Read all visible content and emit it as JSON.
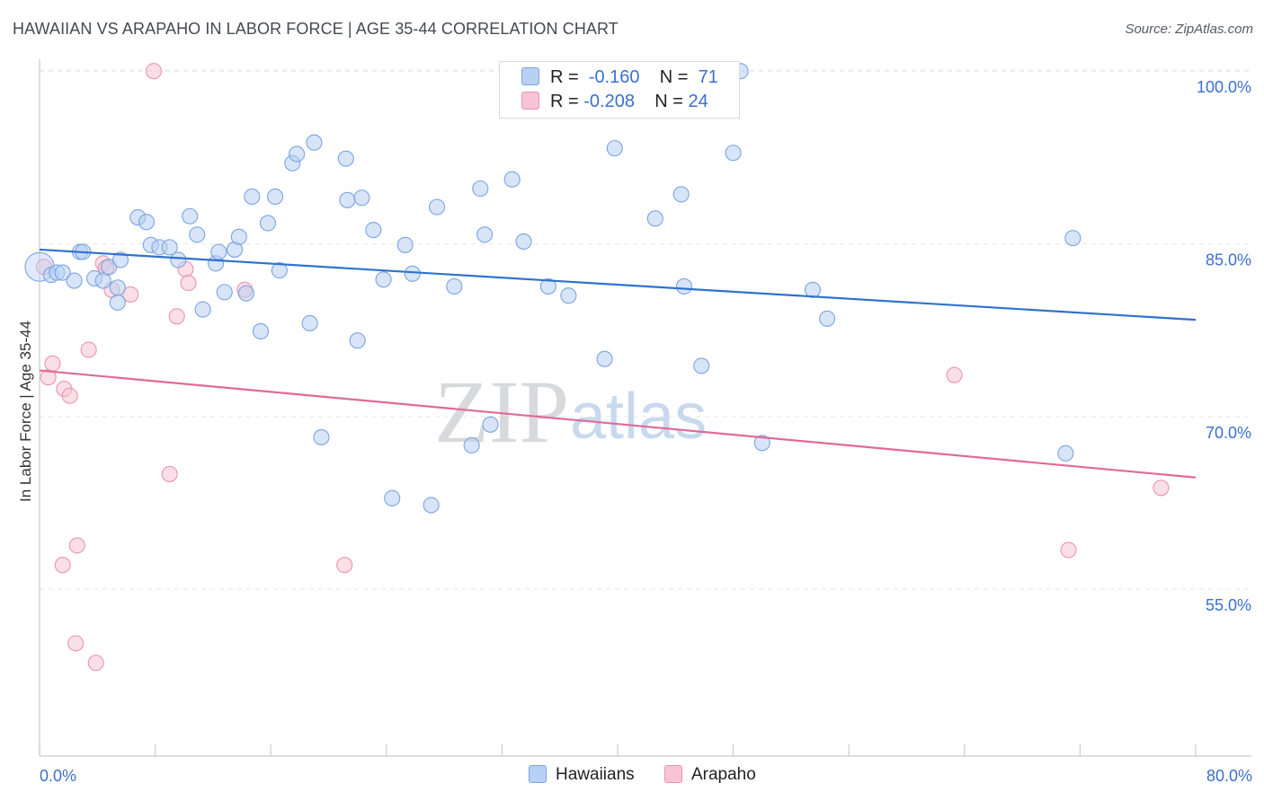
{
  "header": {
    "title": "HAWAIIAN VS ARAPAHO IN LABOR FORCE | AGE 35-44 CORRELATION CHART",
    "source": "Source: ZipAtlas.com"
  },
  "watermark": {
    "zip": "ZIP",
    "atlas": "atlas"
  },
  "legend": {
    "r_label": "R =",
    "n_label": "N =",
    "hawaiians": {
      "r": "-0.160",
      "n": "71"
    },
    "arapaho": {
      "r": "-0.208",
      "n": "24"
    }
  },
  "colors": {
    "hawaiians_fill": "#b8d0f3",
    "hawaiians_stroke": "#7aa4e0",
    "hawaiians_line": "#2f72cc",
    "arapaho_fill": "#f8c4d4",
    "arapaho_stroke": "#e995b0",
    "arapaho_line": "#e06a98",
    "axis_value": "#3a6fd0"
  },
  "chart_data": {
    "type": "scatter",
    "title": "HAWAIIAN VS ARAPAHO IN LABOR FORCE | AGE 35-44 CORRELATION CHART",
    "xlabel": "",
    "ylabel": "In Labor Force | Age 35-44",
    "xlim": [
      0,
      80
    ],
    "ylim": [
      40.5,
      101.5
    ],
    "x_tick_labels": [
      "0.0%",
      "80.0%"
    ],
    "y_ticks": [
      55,
      70,
      85,
      100
    ],
    "y_tick_labels": [
      "55.0%",
      "70.0%",
      "85.0%",
      "100.0%"
    ],
    "grid": "horizontal dashed",
    "legend_placement": "top-center and bottom",
    "series": [
      {
        "name": "Hawaiians",
        "r": -0.16,
        "n": 71,
        "trend": [
          [
            0,
            84.5
          ],
          [
            80,
            78.4
          ]
        ],
        "points": [
          [
            0.0,
            83.0
          ],
          [
            0.8,
            82.3
          ],
          [
            1.2,
            82.5
          ],
          [
            1.6,
            82.5
          ],
          [
            2.4,
            81.8
          ],
          [
            2.8,
            84.3
          ],
          [
            3.0,
            84.3
          ],
          [
            3.8,
            82.0
          ],
          [
            4.4,
            81.8
          ],
          [
            4.8,
            83.0
          ],
          [
            5.4,
            81.2
          ],
          [
            5.4,
            79.9
          ],
          [
            5.6,
            83.6
          ],
          [
            6.8,
            87.3
          ],
          [
            7.4,
            86.9
          ],
          [
            7.7,
            84.9
          ],
          [
            8.3,
            84.7
          ],
          [
            9.0,
            84.7
          ],
          [
            9.6,
            83.6
          ],
          [
            10.4,
            87.4
          ],
          [
            10.9,
            85.8
          ],
          [
            11.3,
            79.3
          ],
          [
            12.2,
            83.3
          ],
          [
            12.4,
            84.3
          ],
          [
            12.8,
            80.8
          ],
          [
            13.5,
            84.5
          ],
          [
            13.8,
            85.6
          ],
          [
            14.3,
            80.7
          ],
          [
            14.7,
            89.1
          ],
          [
            15.3,
            77.4
          ],
          [
            15.8,
            86.8
          ],
          [
            16.3,
            89.1
          ],
          [
            16.6,
            82.7
          ],
          [
            17.5,
            92.0
          ],
          [
            17.8,
            92.8
          ],
          [
            18.7,
            78.1
          ],
          [
            19.0,
            93.8
          ],
          [
            19.5,
            68.2
          ],
          [
            21.2,
            92.4
          ],
          [
            21.3,
            88.8
          ],
          [
            22.0,
            76.6
          ],
          [
            22.3,
            89.0
          ],
          [
            23.1,
            86.2
          ],
          [
            23.8,
            81.9
          ],
          [
            24.4,
            62.9
          ],
          [
            25.3,
            84.9
          ],
          [
            25.8,
            82.4
          ],
          [
            27.1,
            62.3
          ],
          [
            27.5,
            88.2
          ],
          [
            28.7,
            81.3
          ],
          [
            29.9,
            67.5
          ],
          [
            30.5,
            89.8
          ],
          [
            30.8,
            85.8
          ],
          [
            31.2,
            69.3
          ],
          [
            32.7,
            90.6
          ],
          [
            33.5,
            85.2
          ],
          [
            35.2,
            81.3
          ],
          [
            36.6,
            80.5
          ],
          [
            39.1,
            75.0
          ],
          [
            39.8,
            93.3
          ],
          [
            42.6,
            87.2
          ],
          [
            44.4,
            89.3
          ],
          [
            44.6,
            81.3
          ],
          [
            45.8,
            74.4
          ],
          [
            48.0,
            92.9
          ],
          [
            48.5,
            100.0
          ],
          [
            50.0,
            67.7
          ],
          [
            53.5,
            81.0
          ],
          [
            54.5,
            78.5
          ],
          [
            71.0,
            66.8
          ],
          [
            71.5,
            85.5
          ]
        ]
      },
      {
        "name": "Arapaho",
        "r": -0.208,
        "n": 24,
        "trend": [
          [
            0,
            74.0
          ],
          [
            80,
            64.7
          ]
        ],
        "points": [
          [
            0.3,
            83.0
          ],
          [
            0.6,
            73.4
          ],
          [
            0.9,
            74.6
          ],
          [
            1.6,
            57.1
          ],
          [
            1.7,
            72.4
          ],
          [
            2.1,
            71.8
          ],
          [
            2.5,
            50.3
          ],
          [
            2.6,
            58.8
          ],
          [
            3.4,
            75.8
          ],
          [
            3.9,
            48.6
          ],
          [
            4.4,
            83.3
          ],
          [
            4.6,
            82.9
          ],
          [
            5.0,
            81.0
          ],
          [
            6.3,
            80.6
          ],
          [
            7.9,
            100.0
          ],
          [
            9.0,
            65.0
          ],
          [
            9.5,
            78.7
          ],
          [
            10.1,
            82.8
          ],
          [
            10.3,
            81.6
          ],
          [
            14.2,
            81.0
          ],
          [
            21.1,
            57.1
          ],
          [
            63.3,
            73.6
          ],
          [
            71.2,
            58.4
          ],
          [
            77.6,
            63.8
          ]
        ]
      }
    ]
  }
}
